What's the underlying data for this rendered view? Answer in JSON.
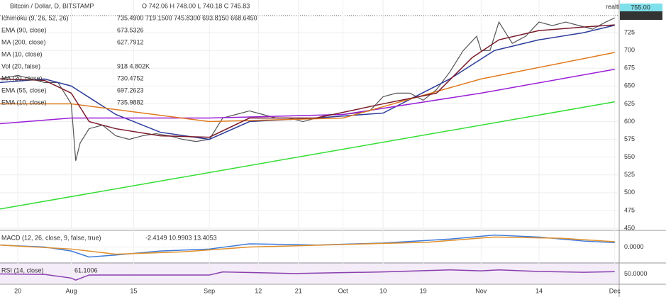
{
  "chart_data": [
    {
      "type": "line",
      "title": "Bitcoin / Dollar, D, BITSTAMP",
      "ohlc": "O 742.06 H 748.00 L 740.18 C 745.83",
      "realtime": "realtime",
      "price_labels": [
        "755.00",
        "745.83"
      ],
      "xlim": [
        -16,
        123
      ],
      "xticks": [
        {
          "value": -12,
          "label": "20"
        },
        {
          "value": 0,
          "label": "Aug"
        },
        {
          "value": 14,
          "label": "15"
        },
        {
          "value": 31,
          "label": "Sep"
        },
        {
          "value": 42,
          "label": "12"
        },
        {
          "value": 51,
          "label": "21"
        },
        {
          "value": 61,
          "label": "Oct"
        },
        {
          "value": 70,
          "label": "10"
        },
        {
          "value": 79,
          "label": "19"
        },
        {
          "value": 92,
          "label": "Nov"
        },
        {
          "value": 105,
          "label": "14"
        },
        {
          "value": 122,
          "label": "Dec"
        }
      ],
      "ylim": [
        447,
        771
      ],
      "yticks": [
        450,
        475,
        500,
        525,
        550,
        575,
        600,
        625,
        650,
        675,
        700,
        725
      ],
      "series": [
        {
          "color": "#555555",
          "x": [
            -16,
            -12,
            -9,
            -6,
            -3,
            0,
            1,
            2,
            4,
            7,
            10,
            13,
            16,
            19,
            22,
            25,
            28,
            31,
            34,
            37,
            40,
            43,
            46,
            49,
            52,
            55,
            58,
            61,
            64,
            67,
            70,
            73,
            76,
            79,
            82,
            85,
            88,
            91,
            92,
            94,
            96,
            99,
            102,
            105,
            108,
            111,
            114,
            117,
            120,
            122
          ],
          "values": [
            660,
            665,
            660,
            655,
            655,
            625,
            545,
            570,
            590,
            595,
            580,
            575,
            580,
            583,
            580,
            575,
            572,
            575,
            605,
            610,
            615,
            610,
            605,
            605,
            600,
            605,
            610,
            610,
            612,
            615,
            635,
            640,
            640,
            630,
            645,
            670,
            700,
            720,
            700,
            700,
            740,
            710,
            720,
            740,
            735,
            740,
            735,
            730,
            740,
            745.83
          ]
        },
        {
          "name": "Ichimoku (9, 26, 52, 26)",
          "value_text": "735.4900 719.1500 745.8300 693.8150 668.6450",
          "color": "#2e3d9c",
          "x": [
            -16,
            -6,
            0,
            10,
            20,
            31,
            40,
            55,
            70,
            85,
            95,
            105,
            115,
            122
          ],
          "values": [
            655,
            660,
            650,
            610,
            585,
            575,
            600,
            605,
            612,
            660,
            700,
            715,
            725,
            735.49
          ]
        },
        {
          "name": "EMA (90, close)",
          "value_text": "673.5326",
          "color": "#9a1fd6",
          "x": [
            -16,
            0,
            31,
            61,
            92,
            122
          ],
          "values": [
            597,
            605,
            605,
            610,
            640,
            673.53
          ]
        },
        {
          "name": "MA (200, close)",
          "value_text": "627.7912",
          "color": "#33dd33",
          "x": [
            -16,
            122
          ],
          "values": [
            477,
            627.79
          ]
        },
        {
          "name": "MA (10, close)",
          "color": "#999999",
          "x": [],
          "values": []
        },
        {
          "name": "Vol (20, false)",
          "value_text": "918 4.802K",
          "color": "#3a9a3a",
          "x": [],
          "values": []
        },
        {
          "name": "MA (20, close)",
          "value_text": "730.4752",
          "color": "#1f2f8c",
          "x": [],
          "values": []
        },
        {
          "name": "EMA (55, close)",
          "value_text": "697.2623",
          "color": "#e07a1f",
          "x": [
            -16,
            0,
            31,
            61,
            92,
            122
          ],
          "values": [
            625,
            625,
            600,
            605,
            660,
            697.26
          ]
        },
        {
          "name": "EMA (10, close)",
          "value_text": "735.9882",
          "color": "#7a1a2a",
          "x": [
            -16,
            -6,
            0,
            4,
            10,
            20,
            31,
            40,
            55,
            70,
            82,
            90,
            96,
            105,
            115,
            122
          ],
          "values": [
            660,
            658,
            640,
            600,
            590,
            580,
            578,
            605,
            605,
            625,
            640,
            690,
            715,
            728,
            733,
            735.99
          ]
        }
      ]
    },
    {
      "type": "line",
      "title": "MACD (12, 26, close, 9, false, true)",
      "value_text": "-2.4149 10.9903 13.4053",
      "ylim": [
        -40,
        40
      ],
      "yticks": [
        {
          "value": 0,
          "label": "0.0000"
        }
      ],
      "series": [
        {
          "color": "#3d7adb",
          "x": [
            -16,
            -6,
            0,
            4,
            10,
            20,
            31,
            40,
            55,
            70,
            85,
            95,
            105,
            115,
            122
          ],
          "values": [
            5,
            0,
            -10,
            -25,
            -20,
            -10,
            -5,
            8,
            5,
            10,
            20,
            30,
            25,
            15,
            11
          ]
        },
        {
          "color": "#e0902b",
          "x": [
            -16,
            0,
            10,
            25,
            40,
            60,
            80,
            95,
            110,
            122
          ],
          "values": [
            5,
            -5,
            -18,
            -12,
            0,
            6,
            12,
            25,
            22,
            13.4
          ]
        }
      ]
    },
    {
      "type": "line",
      "title": "RSI (14, close)",
      "value_text": "61.1006",
      "ylim": [
        0,
        100
      ],
      "yticks": [
        {
          "value": 50,
          "label": "50.0000"
        }
      ],
      "series": [
        {
          "color": "#8a3fb0",
          "x": [
            -16,
            -6,
            0,
            1,
            4,
            15,
            31,
            34,
            50,
            70,
            85,
            92,
            96,
            105,
            115,
            122
          ],
          "values": [
            50,
            48,
            30,
            20,
            45,
            45,
            45,
            60,
            52,
            60,
            70,
            65,
            70,
            62,
            58,
            61
          ]
        }
      ]
    }
  ]
}
